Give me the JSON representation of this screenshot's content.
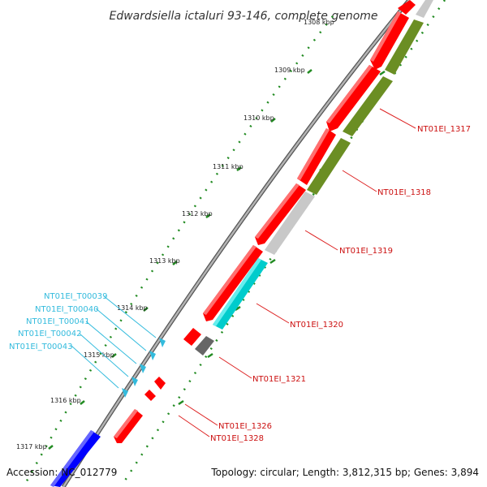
{
  "title": "Edwardsiella ictaluri 93-146, complete genome",
  "footer": {
    "accession": "Accession: NC_012779",
    "topology": "Topology: circular; Length: 3,812,315 bp; Genes: 3,894"
  },
  "kbp_labels": [
    "1308 kbp",
    "1309 kbp",
    "1310 kbp",
    "1311 kbp",
    "1312 kbp",
    "1313 kbp",
    "1314 kbp",
    "1315 kbp",
    "1316 kbp",
    "1317 kbp"
  ],
  "gene_labels": [
    "NT01EI_1317",
    "NT01EI_1318",
    "NT01EI_1319",
    "NT01EI_1320",
    "NT01EI_1321",
    "NT01EI_1326",
    "NT01EI_1328"
  ],
  "trna_labels": [
    "NT01EI_T00039",
    "NT01EI_T00040",
    "NT01EI_T00041",
    "NT01EI_T00042",
    "NT01EI_T00043"
  ],
  "colors": {
    "cds_red": "#ff0000",
    "olive": "#6b8e23",
    "light_gray": "#c8c8c8",
    "cyan": "#00cccc",
    "dark_gray": "#666666",
    "blue": "#0000ff",
    "trna_cyan": "#33bbdd",
    "tick_green": "#228b22",
    "label_red": "#cc1111"
  }
}
